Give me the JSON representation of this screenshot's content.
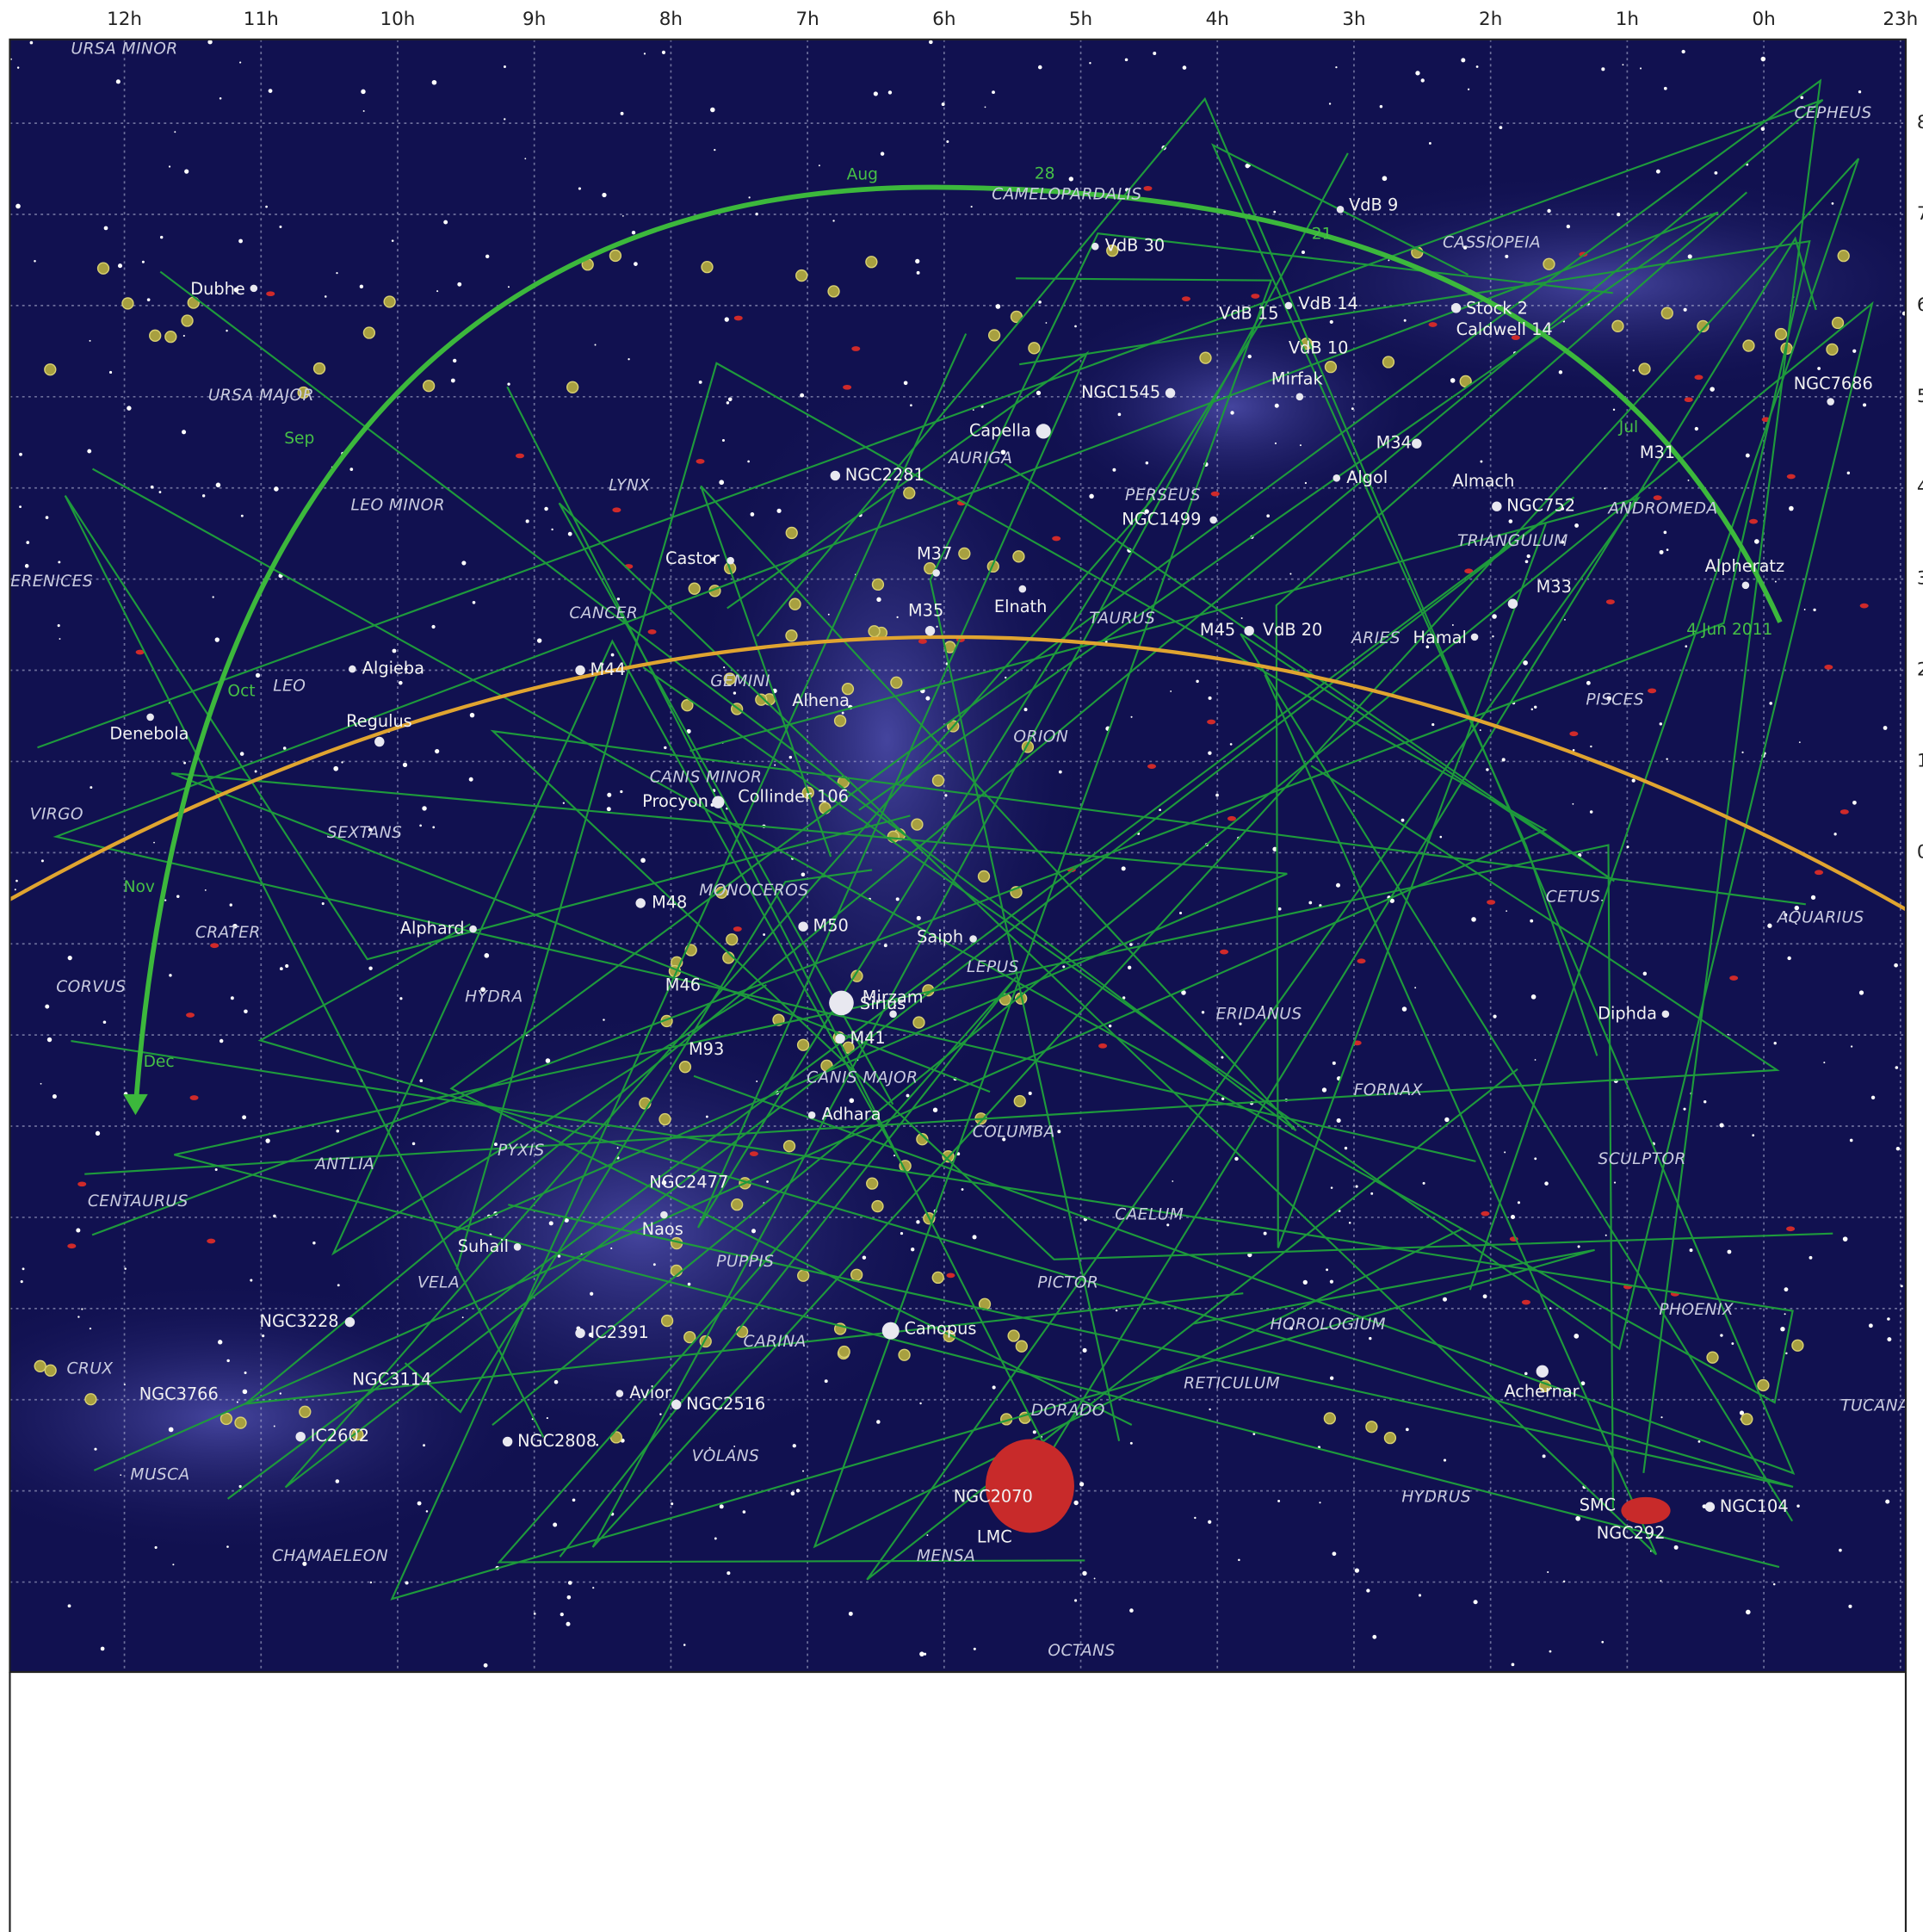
{
  "ra_labels": [
    "12h",
    "11h",
    "10h",
    "9h",
    "8h",
    "7h",
    "6h",
    "5h",
    "4h",
    "3h",
    "2h",
    "1h",
    "0h",
    "23h"
  ],
  "dec_labels": [
    "8",
    "7",
    "6",
    "5",
    "4",
    "3",
    "2",
    "1",
    "0"
  ],
  "constellations": [
    "URSA MINOR",
    "CEPHEUS",
    "CAMELOPARDALIS",
    "CASSIOPEIA",
    "URSA MAJOR",
    "LEO MINOR",
    "LYNX",
    "AURIGA",
    "PERSEUS",
    "ANDROMEDA",
    "TRIANGULUM",
    "ERENICES",
    "CANCER",
    "TAURUS",
    "ARIES",
    "LEO",
    "GEMINI",
    "ORION",
    "PISCES",
    "CANIS MINOR",
    "VIRGO",
    "SEXTANS",
    "MONOCEROS",
    "CETUS",
    "AQUARIUS",
    "CRATER",
    "LEPUS",
    "CORVUS",
    "HYDRA",
    "ERIDANUS",
    "CANIS MAJOR",
    "FORNAX",
    "COLUMBA",
    "SCULPTOR",
    "ANTLIA",
    "PYXIS",
    "CENTAURUS",
    "CAELUM",
    "PUPPIS",
    "VELA",
    "PICTOR",
    "PHOENIX",
    "HOROLOGIUM",
    "CARINA",
    "CRUX",
    "RETICULUM",
    "TUCANA",
    "DORADO",
    "VOLANS",
    "MUSCA",
    "HYDRUS",
    "CHAMAELEON",
    "MENSA",
    "OCTANS"
  ],
  "objects": [
    "Dubhe",
    "VdB 9",
    "VdB 30",
    "VdB 14",
    "VdB 15",
    "Stock 2",
    "Caldwell 14",
    "VdB 10",
    "NGC1545",
    "Mirfak",
    "NGC7686",
    "Capella",
    "M34",
    "M31",
    "NGC2281",
    "Algol",
    "Almach",
    "NGC1499",
    "NGC752",
    "Castor",
    "M37",
    "Alpheratz",
    "M33",
    "M35",
    "Elnath",
    "M45",
    "VdB 20",
    "Hamal",
    "Algieba",
    "M44",
    "Alhena",
    "Regulus",
    "Denebola",
    "Collinder 106",
    "Procyon",
    "M48",
    "M50",
    "Alphard",
    "Saiph",
    "M46",
    "Mirzam",
    "Sirius",
    "Diphda",
    "M41",
    "M93",
    "Adhara",
    "NGC2477",
    "Naos",
    "Suhail",
    "NGC3228",
    "IC2391",
    "Canopus",
    "NGC3114",
    "Achernar",
    "NGC3766",
    "Avior",
    "NGC2516",
    "IC2602",
    "NGC2808",
    "NGC2070",
    "SMC",
    "NGC104",
    "NGC292",
    "LMC"
  ],
  "comet_dates": [
    "Aug",
    "28",
    "21",
    "Jul",
    "4 Jun 2011",
    "Sep",
    "Oct",
    "Nov",
    "Dec"
  ]
}
